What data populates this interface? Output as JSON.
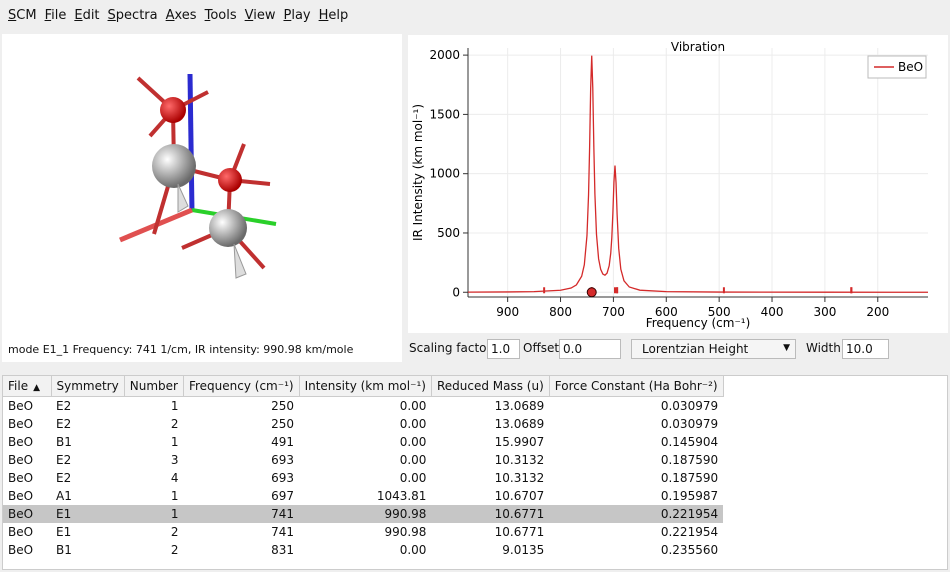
{
  "menu": [
    "SCM",
    "File",
    "Edit",
    "Spectra",
    "Axes",
    "Tools",
    "View",
    "Play",
    "Help"
  ],
  "view3d": {
    "status": "mode E1_1 Frequency:  741 1/cm, IR intensity: 990.98 km/mole"
  },
  "controls": {
    "scaling_label": "Scaling factor:",
    "scaling_value": "1.0",
    "offset_label": "Offset:",
    "offset_value": "0.0",
    "lineshape": "Lorentzian Height",
    "width_label": "Width:",
    "width_value": "10.0"
  },
  "chart_data": {
    "type": "line",
    "title": "Vibration",
    "x_label": "Frequency (cm⁻¹)",
    "y_label": "IR Intensity (km mol⁻¹)",
    "x": [
      975,
      900,
      850,
      800,
      780,
      770,
      760,
      755,
      750,
      747,
      745,
      743,
      741,
      739,
      737,
      735,
      732,
      728,
      724,
      720,
      716,
      712,
      708,
      705,
      703,
      701,
      699,
      697,
      695,
      693,
      690,
      686,
      680,
      670,
      650,
      600,
      500,
      300,
      105
    ],
    "series": [
      {
        "name": "BeO",
        "color": "#d42a2a",
        "values": [
          1.2,
          2.6,
          5.3,
          16.6,
          35.8,
          62.1,
          134.9,
          231.9,
          476.6,
          822.6,
          1219.7,
          1720.8,
          1995.3,
          1723.2,
          1224.6,
          830.1,
          488.3,
          281.9,
          192.4,
          153.4,
          143.8,
          161.6,
          223.2,
          330.7,
          461.5,
          667.0,
          927.5,
          1069.1,
          922.9,
          657.8,
          371.5,
          194.9,
          96.3,
          44.4,
          17.6,
          5.3,
          1.5,
          0.4,
          0.2
        ]
      }
    ],
    "xlim": [
      975,
      105
    ],
    "ylim": [
      -40,
      2060
    ],
    "xticks": [
      900,
      800,
      700,
      600,
      500,
      400,
      300,
      200
    ],
    "yticks": [
      0,
      500,
      1000,
      1500,
      2000
    ],
    "grid": true,
    "legend": "upper right"
  },
  "table": {
    "columns": [
      "File",
      "Symmetry",
      "Number",
      "Frequency (cm⁻¹)",
      "Intensity (km mol⁻¹)",
      "Reduced Mass (u)",
      "Force Constant (Ha Bohr⁻²)"
    ],
    "rows": [
      [
        "BeO",
        "E2",
        "1",
        "250",
        "0.00",
        "13.0689",
        "0.030979"
      ],
      [
        "BeO",
        "E2",
        "2",
        "250",
        "0.00",
        "13.0689",
        "0.030979"
      ],
      [
        "BeO",
        "B1",
        "1",
        "491",
        "0.00",
        "15.9907",
        "0.145904"
      ],
      [
        "BeO",
        "E2",
        "3",
        "693",
        "0.00",
        "10.3132",
        "0.187590"
      ],
      [
        "BeO",
        "E2",
        "4",
        "693",
        "0.00",
        "10.3132",
        "0.187590"
      ],
      [
        "BeO",
        "A1",
        "1",
        "697",
        "1043.81",
        "10.6707",
        "0.195987"
      ],
      [
        "BeO",
        "E1",
        "1",
        "741",
        "990.98",
        "10.6771",
        "0.221954"
      ],
      [
        "BeO",
        "E1",
        "2",
        "741",
        "990.98",
        "10.6771",
        "0.221954"
      ],
      [
        "BeO",
        "B1",
        "2",
        "831",
        "0.00",
        "9.0135",
        "0.235560"
      ]
    ],
    "selected_row": 6
  }
}
